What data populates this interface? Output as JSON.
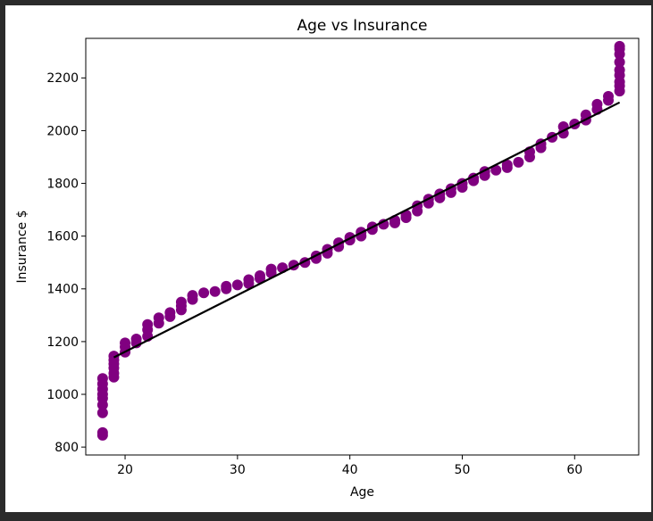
{
  "chart_data": {
    "type": "scatter",
    "title": "Age vs Insurance",
    "xlabel": "Age",
    "ylabel": "Insurance $",
    "xlim": [
      16.5,
      65.7
    ],
    "ylim": [
      770,
      2350
    ],
    "xticks": [
      20,
      30,
      40,
      50,
      60
    ],
    "yticks": [
      800,
      1000,
      1200,
      1400,
      1600,
      1800,
      2000,
      2200
    ],
    "grid": false,
    "point_color": "#800080",
    "line_color": "#000000",
    "series": [
      {
        "kind": "scatter",
        "x": [
          18,
          18,
          18,
          18,
          18,
          18,
          18,
          18,
          18,
          19,
          19,
          19,
          19,
          19,
          19,
          20,
          20,
          20,
          21,
          21,
          22,
          22,
          22,
          23,
          23,
          24,
          24,
          25,
          25,
          25,
          26,
          26,
          27,
          28,
          29,
          29,
          30,
          31,
          31,
          32,
          32,
          33,
          33,
          34,
          35,
          36,
          37,
          37,
          38,
          38,
          39,
          39,
          40,
          40,
          41,
          41,
          42,
          42,
          43,
          44,
          44,
          45,
          45,
          46,
          46,
          47,
          47,
          48,
          48,
          49,
          49,
          50,
          50,
          51,
          51,
          52,
          52,
          53,
          54,
          54,
          55,
          56,
          56,
          57,
          57,
          58,
          59,
          59,
          60,
          61,
          61,
          62,
          62,
          63,
          63,
          64,
          64,
          64,
          64,
          64,
          64,
          64,
          64,
          64
        ],
        "y": [
          845,
          855,
          930,
          960,
          985,
          1000,
          1020,
          1040,
          1060,
          1065,
          1080,
          1100,
          1115,
          1130,
          1145,
          1160,
          1180,
          1195,
          1195,
          1210,
          1220,
          1245,
          1265,
          1270,
          1290,
          1295,
          1310,
          1320,
          1335,
          1350,
          1360,
          1375,
          1385,
          1390,
          1400,
          1410,
          1415,
          1420,
          1435,
          1440,
          1450,
          1460,
          1475,
          1480,
          1490,
          1500,
          1515,
          1525,
          1535,
          1550,
          1560,
          1575,
          1585,
          1595,
          1600,
          1615,
          1625,
          1635,
          1645,
          1650,
          1660,
          1670,
          1680,
          1695,
          1715,
          1725,
          1740,
          1745,
          1760,
          1765,
          1780,
          1785,
          1800,
          1810,
          1820,
          1830,
          1845,
          1850,
          1860,
          1870,
          1880,
          1900,
          1920,
          1935,
          1950,
          1975,
          1990,
          2015,
          2025,
          2040,
          2060,
          2080,
          2100,
          2115,
          2130,
          2150,
          2170,
          2185,
          2210,
          2230,
          2260,
          2290,
          2310,
          2320
        ]
      },
      {
        "kind": "line",
        "x": [
          19,
          64
        ],
        "y": [
          1140,
          2107
        ]
      }
    ]
  }
}
